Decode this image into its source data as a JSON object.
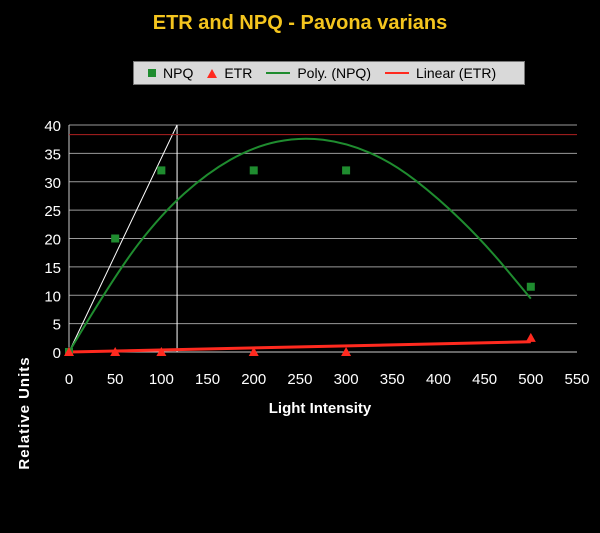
{
  "chart_data": {
    "type": "scatter",
    "title": "ETR and NPQ - Pavona varians",
    "xlabel": "Light Intensity",
    "ylabel": "Relative Units",
    "xlim": [
      0,
      550
    ],
    "ylim": [
      0,
      40
    ],
    "xticks": [
      "0",
      "50",
      "100",
      "150",
      "200",
      "250",
      "300",
      "350",
      "400",
      "450",
      "500",
      "550"
    ],
    "yticks": [
      "0",
      "5",
      "10",
      "15",
      "20",
      "25",
      "30",
      "35",
      "40"
    ],
    "grid": true,
    "legend_position": "top",
    "series": [
      {
        "name": "NPQ",
        "marker": "square",
        "color": "#1f8c2f",
        "x": [
          0,
          50,
          100,
          200,
          300,
          500
        ],
        "y": [
          0,
          20,
          32,
          32,
          32,
          11.5
        ]
      },
      {
        "name": "ETR",
        "marker": "triangle",
        "color": "#ff2a1f",
        "x": [
          0,
          50,
          100,
          200,
          300,
          500
        ],
        "y": [
          0,
          0,
          0,
          0,
          0,
          2.5
        ]
      },
      {
        "name": "Poly. (NPQ)",
        "type": "trendline-poly2",
        "color": "#1f8c2f",
        "x": [
          0,
          50,
          100,
          150,
          200,
          250,
          300,
          350,
          400,
          450,
          500
        ],
        "y": [
          0,
          13.7,
          24.3,
          31.6,
          36.2,
          37.9,
          36.9,
          33.4,
          27.1,
          19.2,
          9.4
        ]
      },
      {
        "name": "Linear (ETR)",
        "type": "trendline-linear",
        "color": "#ff2a1f",
        "x": [
          0,
          500
        ],
        "y": [
          0,
          1.8
        ]
      }
    ],
    "extra_lines": [
      {
        "color": "#ffffff",
        "x": [
          0,
          117
        ],
        "y": [
          0,
          40
        ]
      },
      {
        "color": "#ffffff",
        "x": [
          117,
          117
        ],
        "y": [
          0,
          40
        ]
      },
      {
        "color": "#b02020",
        "x": [
          0,
          550
        ],
        "y": [
          38.3,
          38.3
        ]
      }
    ]
  },
  "legend": {
    "npq": "NPQ",
    "etr": "ETR",
    "poly": "Poly. (NPQ)",
    "linear": "Linear (ETR)"
  }
}
